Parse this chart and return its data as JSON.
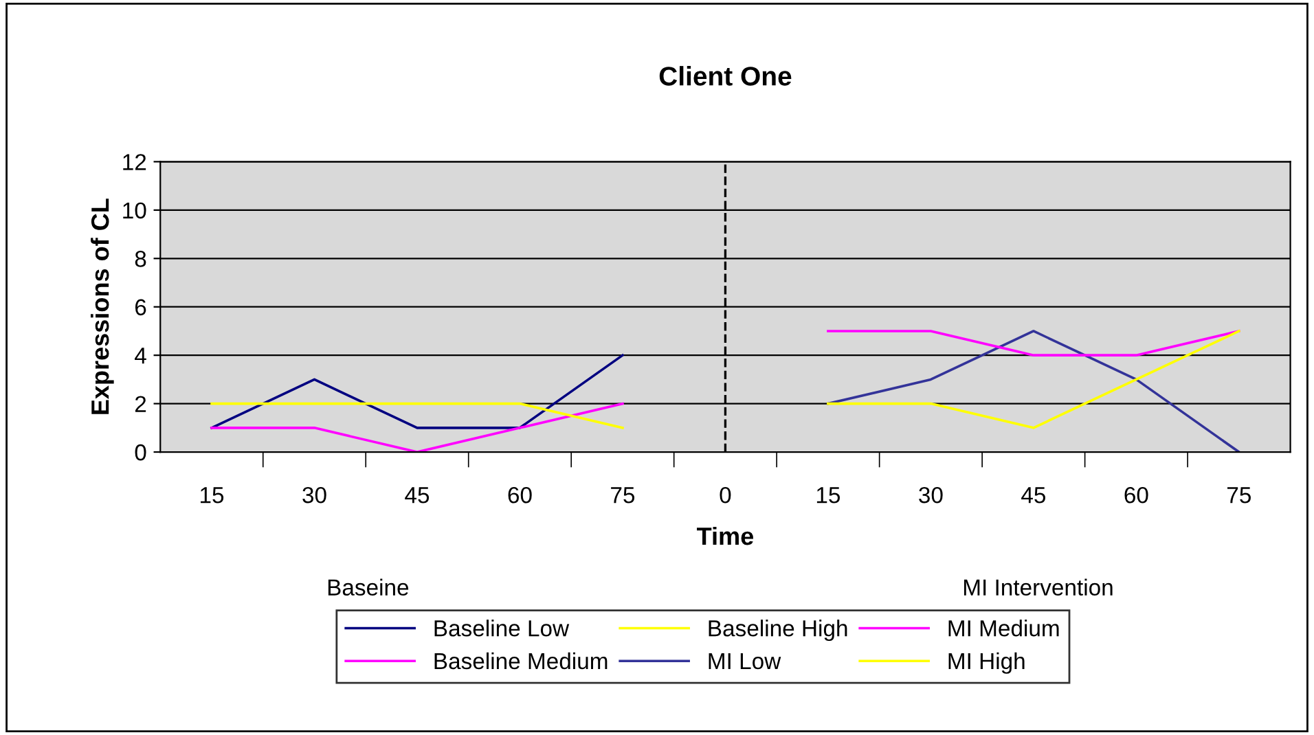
{
  "chart_data": {
    "type": "line",
    "title": "Client One",
    "xlabel": "Time",
    "ylabel": "Expressions of CL",
    "categories": [
      "15",
      "30",
      "45",
      "60",
      "75",
      "0",
      "15",
      "30",
      "45",
      "60",
      "75"
    ],
    "series": [
      {
        "name": "Baseline Low",
        "color": "#000080",
        "values": [
          1,
          3,
          1,
          1,
          4,
          null,
          null,
          null,
          null,
          null,
          null
        ]
      },
      {
        "name": "Baseline Medium",
        "color": "#ff00ff",
        "values": [
          1,
          1,
          0,
          1,
          2,
          null,
          null,
          null,
          null,
          null,
          null
        ]
      },
      {
        "name": "Baseline High",
        "color": "#ffff00",
        "values": [
          2,
          2,
          2,
          2,
          1,
          null,
          null,
          null,
          null,
          null,
          null
        ]
      },
      {
        "name": "MI Low",
        "color": "#333399",
        "values": [
          null,
          null,
          null,
          null,
          null,
          null,
          2,
          3,
          5,
          3,
          0
        ]
      },
      {
        "name": "MI Medium",
        "color": "#ff00ff",
        "values": [
          null,
          null,
          null,
          null,
          null,
          null,
          5,
          5,
          4,
          4,
          5
        ]
      },
      {
        "name": "MI High",
        "color": "#ffff00",
        "values": [
          null,
          null,
          null,
          null,
          null,
          null,
          2,
          2,
          1,
          3,
          5
        ]
      }
    ],
    "ylim": [
      0,
      12
    ],
    "yticks": [
      0,
      2,
      4,
      6,
      8,
      10,
      12
    ],
    "grid": "y",
    "legend": "bottom",
    "marker": "none",
    "line_style": "solid",
    "ref_lines": [
      {
        "axis": "x",
        "value": "0",
        "line_style": "dashed",
        "color": "#000000"
      }
    ],
    "annotations": [
      "Baseine",
      "MI Intervention"
    ]
  }
}
